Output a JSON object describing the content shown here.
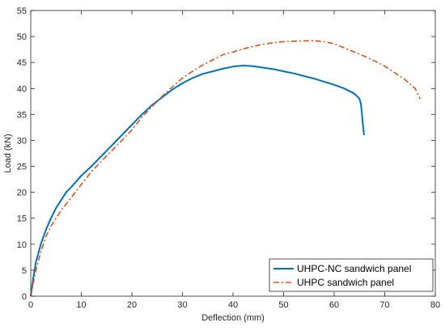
{
  "chart_data": {
    "type": "line",
    "title": "",
    "xlabel": "Deflection (mm)",
    "ylabel": "Load (kN)",
    "xlim": [
      0,
      80
    ],
    "ylim": [
      0,
      55
    ],
    "xticks": [
      0,
      10,
      20,
      30,
      40,
      50,
      60,
      70,
      80
    ],
    "yticks": [
      0,
      5,
      10,
      15,
      20,
      25,
      30,
      35,
      40,
      45,
      50,
      55
    ],
    "grid": false,
    "legend_position": "bottom-right",
    "series": [
      {
        "name": "UHPC-NC sandwich panel",
        "color": "#0072BD",
        "style": "solid",
        "x": [
          0,
          0.5,
          1,
          2,
          3,
          4,
          5,
          6,
          7,
          8,
          10,
          12,
          14,
          16,
          18,
          20,
          22,
          24,
          26,
          28,
          30,
          32,
          34,
          36,
          38,
          40,
          42,
          44,
          46,
          48,
          50,
          52,
          54,
          56,
          58,
          60,
          62,
          64,
          65,
          65.3,
          65.5,
          65.7,
          65.9
        ],
        "y": [
          0,
          3.5,
          6.5,
          10,
          12.8,
          15,
          17,
          18.5,
          20,
          21,
          23.2,
          25,
          27,
          29,
          31,
          33,
          35,
          36.8,
          38.3,
          39.8,
          41,
          42,
          42.8,
          43.3,
          43.8,
          44.2,
          44.4,
          44.3,
          44,
          43.7,
          43.3,
          42.9,
          42.4,
          41.9,
          41.3,
          40.7,
          40,
          39,
          38,
          37,
          35,
          33,
          31
        ]
      },
      {
        "name": "UHPC sandwich panel",
        "color": "#D95319",
        "style": "dash-dot",
        "x": [
          0,
          0.5,
          1,
          2,
          3,
          4,
          5,
          6,
          8,
          10,
          12,
          14,
          16,
          18,
          20,
          22,
          24,
          26,
          28,
          30,
          32,
          34,
          36,
          38,
          40,
          42,
          44,
          46,
          48,
          50,
          52,
          54,
          56,
          58,
          60,
          62,
          64,
          66,
          68,
          70,
          72,
          74,
          76,
          77
        ],
        "y": [
          0,
          2.5,
          5,
          8.5,
          11.5,
          13.5,
          15,
          16.5,
          19,
          21.5,
          24,
          26,
          28,
          30,
          32,
          34.5,
          36.5,
          38.5,
          40.3,
          42,
          43.3,
          44.5,
          45.5,
          46.5,
          47,
          47.6,
          48.1,
          48.5,
          48.8,
          49,
          49.1,
          49.15,
          49.2,
          49,
          48.6,
          47.8,
          47,
          46.2,
          45.3,
          44.3,
          43,
          41.7,
          40,
          38
        ]
      }
    ]
  }
}
